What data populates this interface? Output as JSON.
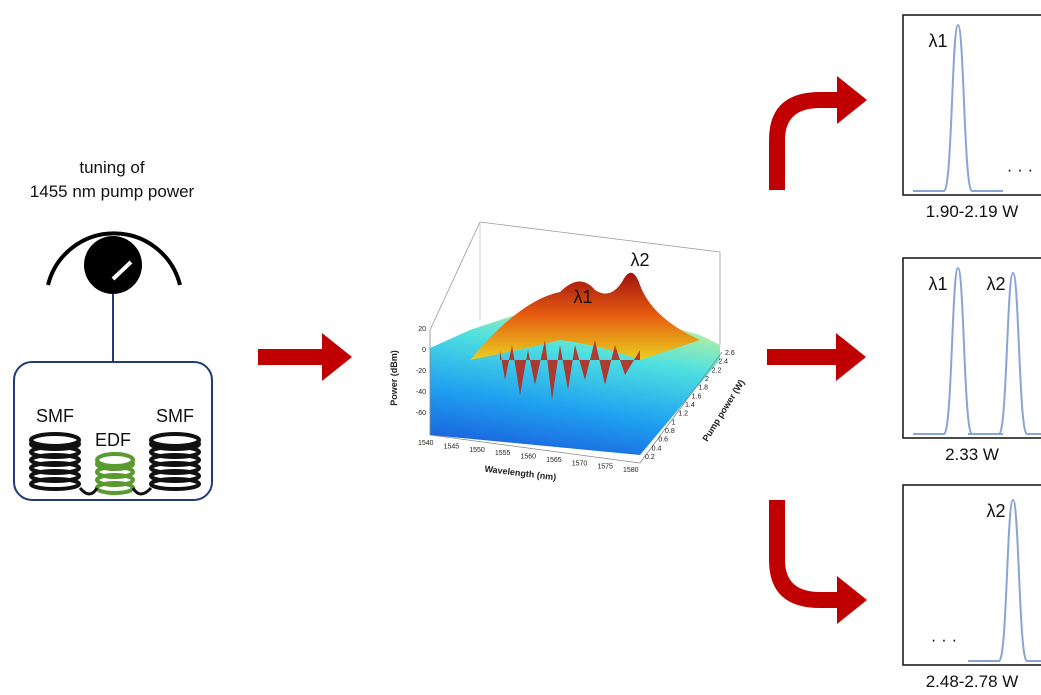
{
  "tuning": {
    "line1": "tuning of",
    "line2": "1455 nm pump power"
  },
  "cavity": {
    "left_fiber": "SMF",
    "gain_fiber": "EDF",
    "right_fiber": "SMF"
  },
  "plot3d": {
    "y_label": "Power (dBm)",
    "x_label": "Wavelength (nm)",
    "z_label": "Pump power (W)",
    "peak1": "λ1",
    "peak2": "λ2",
    "yticks": [
      "20",
      "0",
      "-20",
      "-40",
      "-60"
    ],
    "xticks": [
      "1540",
      "1545",
      "1550",
      "1555",
      "1560",
      "1565",
      "1570",
      "1575",
      "1580"
    ],
    "zticks": [
      "0.2",
      "0.4",
      "0.6",
      "0.8",
      "1",
      "1.2",
      "1.4",
      "1.6",
      "1.8",
      "2",
      "2.2",
      "2.4",
      "2.6"
    ]
  },
  "panels": [
    {
      "peak_a": "λ1",
      "dots": "· · ·",
      "caption": "1.90-2.19 W"
    },
    {
      "peak_a": "λ1",
      "peak_b": "λ2",
      "caption": "2.33 W"
    },
    {
      "peak_b": "λ2",
      "dots": "· · ·",
      "caption": "2.48-2.78 W"
    }
  ]
}
